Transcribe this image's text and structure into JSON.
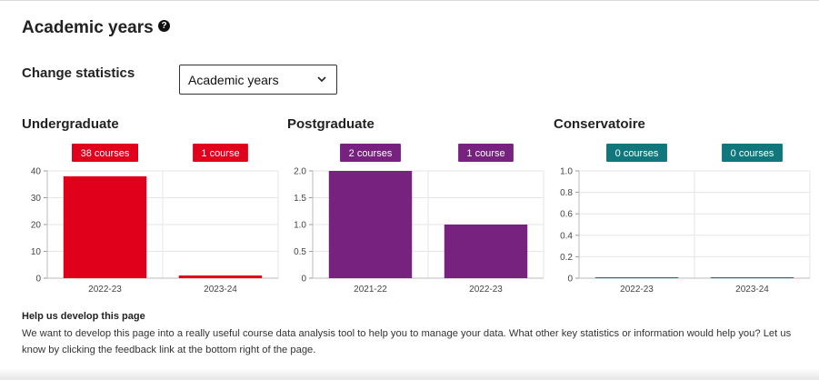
{
  "page": {
    "title": "Academic years",
    "help_icon": "question-circle-icon"
  },
  "controls": {
    "change_label": "Change statistics",
    "select_value": "Academic years",
    "select_icon": "chevron-down-icon"
  },
  "footer": {
    "title": "Help us develop this page",
    "text": "We want to develop this page into a really useful course data analysis tool to help you to manage your data. What other key statistics or information would help you? Let us know by clicking the feedback link at the bottom right of the page."
  },
  "chart_data": [
    {
      "type": "bar",
      "title": "Undergraduate",
      "categories": [
        "2022-23",
        "2023-24"
      ],
      "values": [
        38,
        1
      ],
      "badges": [
        "38 courses",
        "1 course"
      ],
      "ylim": [
        0,
        40
      ],
      "yticks": [
        "0",
        "10",
        "20",
        "30",
        "40"
      ],
      "color": "#e0001b",
      "grid": true
    },
    {
      "type": "bar",
      "title": "Postgraduate",
      "categories": [
        "2021-22",
        "2022-23"
      ],
      "values": [
        2,
        1
      ],
      "badges": [
        "2 courses",
        "1 course"
      ],
      "ylim": [
        0,
        2
      ],
      "yticks": [
        "0",
        "0.5",
        "1.0",
        "1.5",
        "2.0"
      ],
      "color": "#76227e",
      "grid": true
    },
    {
      "type": "bar",
      "title": "Conservatoire",
      "categories": [
        "2022-23",
        "2023-24"
      ],
      "values": [
        0,
        0
      ],
      "badges": [
        "0 courses",
        "0 courses"
      ],
      "ylim": [
        0,
        1
      ],
      "yticks": [
        "0",
        "0.2",
        "0.4",
        "0.6",
        "0.8",
        "1.0"
      ],
      "color": "#10787c",
      "grid": true
    }
  ]
}
